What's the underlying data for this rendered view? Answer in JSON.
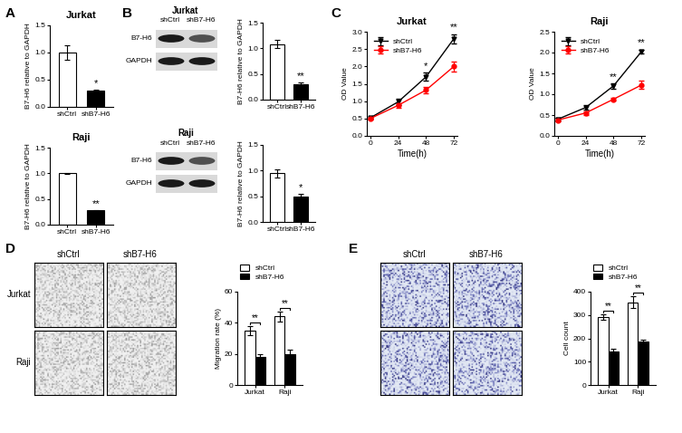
{
  "panels": [
    "A",
    "B",
    "C",
    "D",
    "E"
  ],
  "chart_data": [
    {
      "type": "bar",
      "title": "Jurkat",
      "categories": [
        "shCtrl",
        "shB7-H6"
      ],
      "values": [
        1.0,
        0.3
      ],
      "errors": [
        0.13,
        0.02
      ],
      "colors": [
        "#ffffff",
        "#000000"
      ],
      "y_label": "B7-H6 relative to GAPDH",
      "ylim": [
        0.0,
        1.5
      ],
      "yticks": [
        0.0,
        0.5,
        1.0,
        1.5
      ],
      "annotations": [
        {
          "category": "shB7-H6",
          "text": "*"
        }
      ]
    },
    {
      "type": "bar",
      "title": "Raji",
      "categories": [
        "shCtrl",
        "shB7-H6"
      ],
      "values": [
        1.0,
        0.28
      ],
      "errors": [
        0.01,
        0.01
      ],
      "colors": [
        "#ffffff",
        "#000000"
      ],
      "y_label": "B7-H6 relative to GAPDH",
      "ylim": [
        0.0,
        1.5
      ],
      "yticks": [
        0.0,
        0.5,
        1.0,
        1.5
      ],
      "annotations": [
        {
          "category": "shB7-H6",
          "text": "**"
        }
      ]
    },
    {
      "type": "bar",
      "categories": [
        "shCtrl",
        "shB7-H6"
      ],
      "values": [
        1.08,
        0.3
      ],
      "errors": [
        0.08,
        0.04
      ],
      "colors": [
        "#ffffff",
        "#000000"
      ],
      "y_label": "B7-H6 relative to GAPDH",
      "ylim": [
        0.0,
        1.5
      ],
      "yticks": [
        0.0,
        0.5,
        1.0,
        1.5
      ],
      "annotations": [
        {
          "category": "shB7-H6",
          "text": "**"
        }
      ]
    },
    {
      "type": "bar",
      "categories": [
        "shCtrl",
        "shB7-H6"
      ],
      "values": [
        0.95,
        0.5
      ],
      "errors": [
        0.08,
        0.05
      ],
      "colors": [
        "#ffffff",
        "#000000"
      ],
      "y_label": "B7-H6 relative to GAPDH",
      "ylim": [
        0.0,
        1.5
      ],
      "yticks": [
        0.0,
        0.5,
        1.0,
        1.5
      ],
      "annotations": [
        {
          "category": "shB7-H6",
          "text": "*"
        }
      ]
    },
    {
      "type": "line",
      "title": "Jurkat",
      "x": [
        0,
        24,
        48,
        72
      ],
      "x_label": "Time(h)",
      "y_label": "OD Value",
      "xlim": [
        -3,
        75
      ],
      "xticks": [
        0,
        24,
        48,
        72
      ],
      "ylim": [
        0.0,
        3.0
      ],
      "yticks": [
        0.0,
        0.5,
        1.0,
        1.5,
        2.0,
        2.5,
        3.0
      ],
      "legend": "upper left",
      "series": [
        {
          "name": "shCtrl",
          "color": "#000000",
          "marker": "triangle_down",
          "values": [
            0.52,
            0.98,
            1.7,
            2.8
          ],
          "errors": [
            0.03,
            0.08,
            0.12,
            0.13
          ]
        },
        {
          "name": "shB7-H6",
          "color": "#ff0000",
          "marker": "circle",
          "values": [
            0.5,
            0.88,
            1.32,
            2.0
          ],
          "errors": [
            0.03,
            0.06,
            0.1,
            0.15
          ]
        }
      ],
      "annotations": [
        {
          "x": 48,
          "text": "*"
        },
        {
          "x": 72,
          "text": "**"
        }
      ]
    },
    {
      "type": "line",
      "title": "Raji",
      "x": [
        0,
        24,
        48,
        72
      ],
      "x_label": "Time(h)",
      "y_label": "OD Value",
      "xlim": [
        -3,
        75
      ],
      "xticks": [
        0,
        24,
        48,
        72
      ],
      "ylim": [
        0.0,
        2.5
      ],
      "yticks": [
        0.0,
        0.5,
        1.0,
        1.5,
        2.0,
        2.5
      ],
      "legend": "upper left",
      "series": [
        {
          "name": "shCtrl",
          "color": "#000000",
          "marker": "triangle_down",
          "values": [
            0.4,
            0.68,
            1.2,
            2.02
          ],
          "errors": [
            0.03,
            0.06,
            0.06,
            0.05
          ]
        },
        {
          "name": "shB7-H6",
          "color": "#ff0000",
          "marker": "circle",
          "values": [
            0.38,
            0.55,
            0.88,
            1.22
          ],
          "errors": [
            0.03,
            0.04,
            0.04,
            0.1
          ]
        }
      ],
      "annotations": [
        {
          "x": 48,
          "text": "**"
        },
        {
          "x": 72,
          "text": "**"
        }
      ]
    },
    {
      "type": "bar",
      "categories": [
        "Jurkat",
        "Raji"
      ],
      "y_label": "Migration rate (%)",
      "ylim": [
        0,
        60
      ],
      "yticks": [
        0,
        20,
        40,
        60
      ],
      "legend": "upper left",
      "series": [
        {
          "name": "shCtrl",
          "color": "#ffffff",
          "values": [
            35,
            44
          ],
          "errors": [
            3,
            3
          ]
        },
        {
          "name": "shB7-H6",
          "color": "#000000",
          "values": [
            18,
            20
          ],
          "errors": [
            2,
            3
          ]
        }
      ],
      "annotations": [
        {
          "category": "Jurkat",
          "text": "**"
        },
        {
          "category": "Raji",
          "text": "**"
        }
      ]
    },
    {
      "type": "bar",
      "categories": [
        "Jurkat",
        "Raji"
      ],
      "y_label": "Cell count",
      "ylim": [
        0,
        400
      ],
      "yticks": [
        0,
        100,
        200,
        300,
        400
      ],
      "legend": "upper left",
      "series": [
        {
          "name": "shCtrl",
          "color": "#ffffff",
          "values": [
            290,
            355
          ],
          "errors": [
            12,
            25
          ]
        },
        {
          "name": "shB7-H6",
          "color": "#000000",
          "values": [
            145,
            185
          ],
          "errors": [
            10,
            8
          ]
        }
      ],
      "annotations": [
        {
          "category": "Jurkat",
          "text": "**"
        },
        {
          "category": "Raji",
          "text": "**"
        }
      ]
    }
  ],
  "blots": [
    {
      "title": "Jurkat",
      "lanes": [
        "shCtrl",
        "shB7-H6"
      ],
      "bands": [
        "B7-H6",
        "GAPDH"
      ]
    },
    {
      "title": "Raji",
      "lanes": [
        "shCtrl",
        "shB7-H6"
      ],
      "bands": [
        "B7-H6",
        "GAPDH"
      ]
    }
  ],
  "micrographs": [
    {
      "columns": [
        "shCtrl",
        "shB7-H6"
      ],
      "rows": [
        "Jurkat",
        "Raji"
      ]
    },
    {
      "columns": [
        "shCtrl",
        "shB7-H6"
      ]
    }
  ]
}
